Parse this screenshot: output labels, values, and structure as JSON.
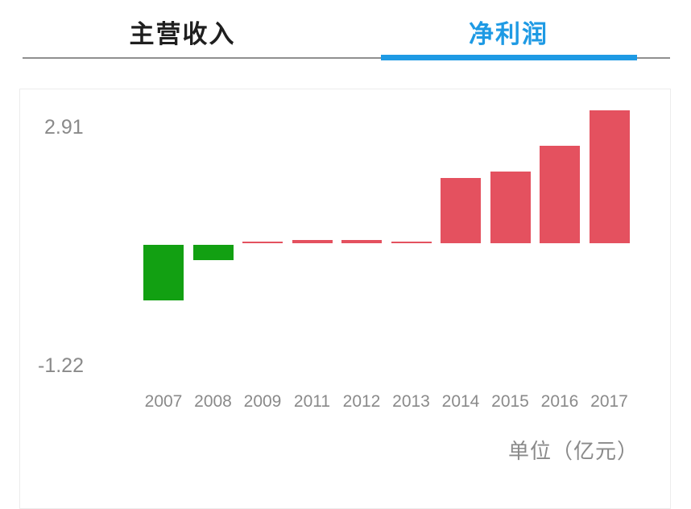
{
  "tabs": [
    {
      "label": "主营收入",
      "active": false
    },
    {
      "label": "净利润",
      "active": true
    }
  ],
  "colors": {
    "accent": "#1e9ae4",
    "tab_inactive_text": "#1f1f1f",
    "hairline": "#8f8f8f",
    "card_border": "#ececec",
    "axis_text": "#8a8a8a",
    "positive": "#e4515f",
    "negative": "#12a012"
  },
  "chart_data": {
    "type": "bar",
    "title": "净利润",
    "unit_label": "单位（亿元）",
    "categories": [
      "2007",
      "2008",
      "2009",
      "2011",
      "2012",
      "2013",
      "2014",
      "2015",
      "2016",
      "2017"
    ],
    "values": [
      -1.22,
      -0.34,
      0.03,
      0.07,
      0.07,
      0.04,
      1.43,
      1.57,
      2.13,
      2.91
    ],
    "y_max_label": "2.91",
    "y_min_label": "-1.22",
    "ylim": [
      -1.22,
      2.91
    ],
    "grid": false,
    "legend": false,
    "positive_color": "#e4515f",
    "negative_color": "#12a012"
  }
}
